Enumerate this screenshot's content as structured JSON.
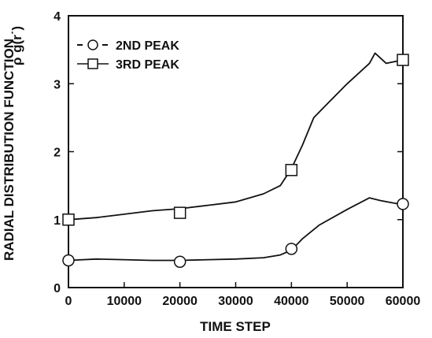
{
  "chart_data": {
    "type": "line",
    "xlabel": "TIME STEP",
    "ylabel": "RADIAL DISTRIBUTION FUNCTION",
    "ylabel_symbol": "ρ˙g(r˙)",
    "xlim": [
      0,
      60000
    ],
    "ylim": [
      0,
      4
    ],
    "x_ticks": [
      0,
      10000,
      20000,
      30000,
      40000,
      50000,
      60000
    ],
    "y_ticks": [
      0,
      1,
      2,
      3,
      4
    ],
    "x_tick_labels": [
      "0",
      "10000",
      "20000",
      "30000",
      "40000",
      "50000",
      "60000"
    ],
    "y_tick_labels": [
      "0",
      "1",
      "2",
      "3",
      "4"
    ],
    "grid": false,
    "legend_position": "top-left",
    "series": [
      {
        "name": "2ND PEAK",
        "marker": "circle",
        "line_style": "dashed",
        "x": [
          0,
          5000,
          10000,
          15000,
          20000,
          25000,
          30000,
          35000,
          38000,
          40000,
          42000,
          45000,
          50000,
          54000,
          56000,
          58000,
          60000
        ],
        "y": [
          0.4,
          0.42,
          0.41,
          0.4,
          0.4,
          0.41,
          0.42,
          0.44,
          0.48,
          0.55,
          0.72,
          0.92,
          1.15,
          1.32,
          1.28,
          1.25,
          1.22
        ],
        "marker_x": [
          0,
          20000,
          40000,
          60000
        ],
        "marker_y": [
          0.4,
          0.38,
          0.57,
          1.23
        ]
      },
      {
        "name": "3RD PEAK",
        "marker": "square",
        "line_style": "solid",
        "x": [
          0,
          5000,
          10000,
          15000,
          20000,
          25000,
          30000,
          35000,
          38000,
          40000,
          42000,
          44000,
          47000,
          50000,
          54000,
          55000,
          57000,
          60000
        ],
        "y": [
          1.0,
          1.03,
          1.08,
          1.13,
          1.16,
          1.21,
          1.26,
          1.38,
          1.5,
          1.75,
          2.1,
          2.5,
          2.75,
          3.0,
          3.3,
          3.45,
          3.3,
          3.35
        ],
        "marker_x": [
          0,
          20000,
          40000,
          60000
        ],
        "marker_y": [
          1.0,
          1.1,
          1.73,
          3.35
        ]
      }
    ]
  }
}
